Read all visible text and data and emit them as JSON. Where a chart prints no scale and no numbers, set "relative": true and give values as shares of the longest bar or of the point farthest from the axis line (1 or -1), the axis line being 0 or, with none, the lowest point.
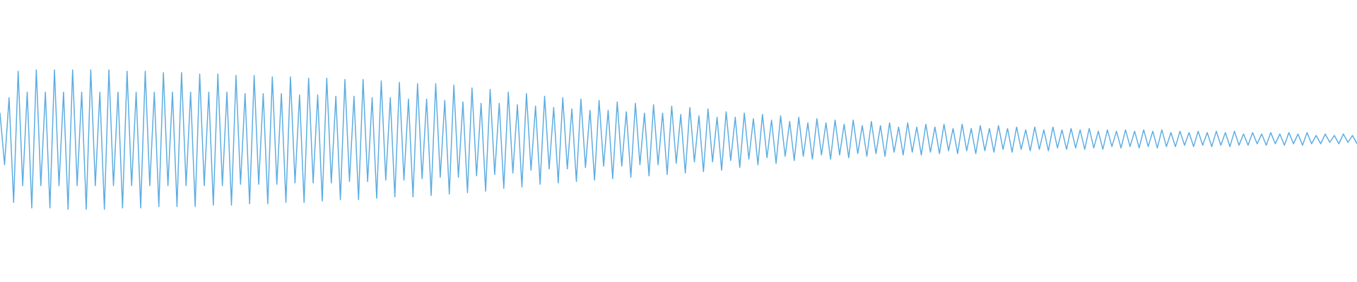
{
  "chart_data": {
    "type": "line",
    "relative": true,
    "categories": [
      null,
      null,
      null,
      null,
      null,
      null,
      null,
      null,
      null,
      null,
      null,
      null,
      null,
      null,
      null,
      null,
      null,
      null,
      null,
      null,
      null,
      null,
      null,
      null,
      null,
      null,
      null,
      null,
      null,
      null,
      null,
      null,
      null,
      null,
      null,
      null,
      null,
      null,
      null,
      null,
      null,
      null,
      null,
      null,
      null,
      null,
      null,
      null,
      null,
      null,
      null,
      null,
      null,
      null,
      null,
      null,
      null,
      null,
      null,
      null,
      null,
      null,
      null,
      null,
      null,
      null,
      null,
      null,
      null,
      null,
      null,
      null,
      null,
      null,
      null,
      null,
      null,
      null,
      null,
      null,
      null,
      null,
      null,
      null,
      null,
      null,
      null,
      null,
      null,
      null,
      null,
      null,
      null,
      null,
      null,
      null,
      null,
      null,
      null,
      null,
      null,
      null,
      null,
      null,
      null,
      null,
      null,
      null,
      null,
      null,
      null,
      null,
      null,
      null,
      null,
      null,
      null,
      null,
      null,
      null,
      null,
      null,
      null,
      null,
      null,
      null,
      null,
      null,
      null,
      null,
      null,
      null,
      null,
      null,
      null,
      null,
      null,
      null,
      null,
      null,
      null,
      null,
      null,
      null,
      null,
      null,
      null,
      null,
      null,
      null,
      null,
      null,
      null,
      null,
      null,
      null,
      null,
      null,
      null,
      null,
      null,
      null,
      null,
      null,
      null,
      null,
      null,
      null,
      null,
      null,
      null,
      null,
      null,
      null,
      null,
      null,
      null,
      null,
      null,
      null,
      null,
      null,
      null,
      null,
      null,
      null,
      null,
      null,
      null,
      null,
      null,
      null,
      null,
      null,
      null,
      null,
      null,
      null,
      null,
      null,
      null,
      null,
      null,
      null,
      null,
      null,
      null,
      null,
      null,
      null,
      null,
      null,
      null,
      null,
      null,
      null,
      null,
      null,
      null,
      null,
      null,
      null,
      null,
      null,
      null,
      null,
      null,
      null,
      null,
      null,
      null,
      null,
      null,
      null,
      null,
      null,
      null,
      null,
      null,
      null,
      null,
      null,
      null,
      null,
      null,
      null,
      null,
      null,
      null,
      null,
      null,
      null,
      null,
      null,
      null,
      null,
      null,
      null,
      null,
      null,
      null,
      null,
      null,
      null,
      null,
      null,
      null,
      null,
      null,
      null,
      null,
      null,
      null,
      null,
      null,
      null,
      null,
      null,
      null,
      null,
      null,
      null,
      null,
      null,
      null,
      null,
      null,
      null,
      null,
      null,
      null,
      null,
      null,
      null,
      null,
      null,
      null,
      null,
      null,
      null
    ],
    "series": [
      {
        "color": "#5dade2",
        "values": [
          0.69,
          0.32,
          0.8,
          0.05,
          0.99,
          0.17,
          0.84,
          0.01,
          1.0,
          0.17,
          0.84,
          0.01,
          1.0,
          0.17,
          0.84,
          0,
          1.0,
          0.17,
          0.84,
          0,
          1.0,
          0.17,
          0.84,
          0,
          1.0,
          0.17,
          0.84,
          0.01,
          0.99,
          0.17,
          0.84,
          0.01,
          0.99,
          0.17,
          0.84,
          0.02,
          0.98,
          0.17,
          0.84,
          0.02,
          0.98,
          0.17,
          0.84,
          0.02,
          0.97,
          0.17,
          0.84,
          0.03,
          0.97,
          0.17,
          0.84,
          0.03,
          0.96,
          0.18,
          0.83,
          0.04,
          0.96,
          0.18,
          0.83,
          0.04,
          0.95,
          0.18,
          0.83,
          0.05,
          0.95,
          0.19,
          0.82,
          0.05,
          0.94,
          0.19,
          0.82,
          0.06,
          0.94,
          0.19,
          0.81,
          0.07,
          0.93,
          0.2,
          0.81,
          0.07,
          0.93,
          0.2,
          0.8,
          0.08,
          0.92,
          0.21,
          0.8,
          0.09,
          0.91,
          0.21,
          0.79,
          0.09,
          0.9,
          0.22,
          0.79,
          0.1,
          0.9,
          0.23,
          0.78,
          0.11,
          0.89,
          0.23,
          0.77,
          0.12,
          0.87,
          0.24,
          0.76,
          0.13,
          0.86,
          0.25,
          0.76,
          0.15,
          0.84,
          0.26,
          0.75,
          0.16,
          0.83,
          0.28,
          0.74,
          0.18,
          0.81,
          0.29,
          0.73,
          0.19,
          0.8,
          0.29,
          0.72,
          0.2,
          0.79,
          0.3,
          0.71,
          0.21,
          0.78,
          0.31,
          0.71,
          0.22,
          0.77,
          0.31,
          0.7,
          0.23,
          0.76,
          0.32,
          0.69,
          0.24,
          0.75,
          0.32,
          0.69,
          0.25,
          0.74,
          0.33,
          0.68,
          0.26,
          0.73,
          0.34,
          0.67,
          0.27,
          0.72,
          0.34,
          0.66,
          0.28,
          0.7,
          0.35,
          0.66,
          0.3,
          0.69,
          0.36,
          0.65,
          0.32,
          0.68,
          0.37,
          0.64,
          0.33,
          0.67,
          0.38,
          0.63,
          0.35,
          0.66,
          0.38,
          0.62,
          0.36,
          0.65,
          0.39,
          0.62,
          0.36,
          0.64,
          0.39,
          0.61,
          0.37,
          0.64,
          0.4,
          0.6,
          0.38,
          0.63,
          0.4,
          0.6,
          0.38,
          0.62,
          0.41,
          0.59,
          0.39,
          0.62,
          0.41,
          0.59,
          0.39,
          0.61,
          0.41,
          0.59,
          0.4,
          0.61,
          0.42,
          0.58,
          0.4,
          0.61,
          0.42,
          0.58,
          0.4,
          0.6,
          0.42,
          0.58,
          0.41,
          0.6,
          0.43,
          0.58,
          0.41,
          0.59,
          0.43,
          0.57,
          0.42,
          0.59,
          0.43,
          0.57,
          0.42,
          0.59,
          0.44,
          0.57,
          0.43,
          0.58,
          0.44,
          0.57,
          0.43,
          0.58,
          0.44,
          0.56,
          0.43,
          0.57,
          0.45,
          0.56,
          0.44,
          0.57,
          0.45,
          0.56,
          0.44,
          0.57,
          0.45,
          0.56,
          0.44,
          0.57,
          0.45,
          0.55,
          0.45,
          0.56,
          0.46,
          0.55,
          0.45,
          0.56,
          0.46,
          0.55,
          0.45,
          0.56,
          0.46,
          0.55,
          0.45,
          0.56,
          0.46,
          0.54,
          0.46,
          0.55,
          0.47,
          0.54,
          0.46,
          0.55,
          0.47,
          0.54,
          0.46,
          0.55,
          0.47,
          0.54,
          0.46,
          0.55,
          0.47,
          0.53,
          0.47,
          0.54,
          0.48,
          0.53,
          0.47,
          0.54,
          0.48,
          0.53,
          0.47
        ]
      }
    ]
  }
}
